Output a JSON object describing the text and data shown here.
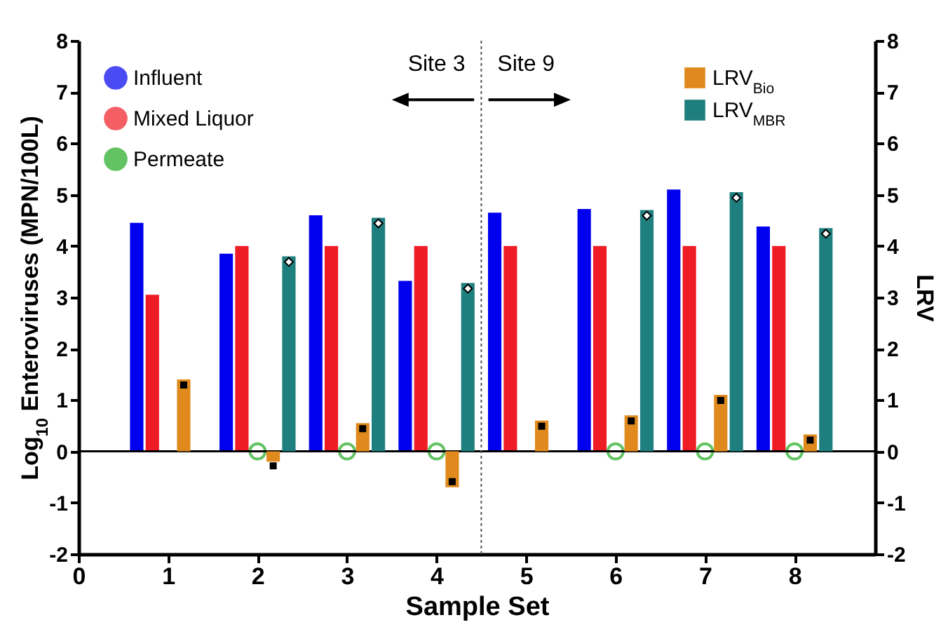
{
  "chart_data": {
    "type": "bar",
    "xlabel": "Sample Set",
    "ylabel": "Log$_{10}$ Enteroviruses  (MPN/100L)",
    "y2label": "LRV",
    "x": [
      1,
      2,
      3,
      4,
      5,
      6,
      7,
      8
    ],
    "xlim": [
      0,
      8.9
    ],
    "xticks": [
      {
        "value": 0,
        "label": "0"
      },
      {
        "value": 1,
        "label": "1"
      },
      {
        "value": 2,
        "label": "2"
      },
      {
        "value": 3,
        "label": "3"
      },
      {
        "value": 4,
        "label": "4"
      },
      {
        "value": 5,
        "label": "5"
      },
      {
        "value": 6,
        "label": "6"
      },
      {
        "value": 7,
        "label": "7"
      },
      {
        "value": 8,
        "label": "8"
      }
    ],
    "ylim": [
      -2,
      8
    ],
    "yticks": [
      -2,
      -1,
      0,
      1,
      2,
      3,
      4,
      5,
      6,
      7,
      8
    ],
    "y2lim": [
      -2,
      8
    ],
    "y2ticks": [
      -2,
      -1,
      0,
      1,
      2,
      3,
      4,
      5,
      6,
      7,
      8
    ],
    "legend": "top left",
    "series": [
      {
        "name": "Influent",
        "color": "#0000ee",
        "values": [
          4.45,
          3.85,
          4.6,
          3.32,
          4.65,
          4.72,
          5.1,
          4.38
        ]
      },
      {
        "name": "Mixed Liquor",
        "color": "#ee1c25",
        "values": [
          3.05,
          4.0,
          4.0,
          4.0,
          4.0,
          4.0,
          4.0,
          4.0
        ]
      },
      {
        "name": "Permeate",
        "type": "scatter",
        "marker": "circle",
        "color": "#22aa22",
        "values": [
          null,
          0,
          0,
          0,
          null,
          0,
          0,
          0
        ]
      },
      {
        "name": "LRV$_{Bio}$",
        "color": "#e08a1e",
        "axis": "y2",
        "marker": "square",
        "values": [
          1.4,
          -0.2,
          0.55,
          -0.7,
          0.6,
          0.7,
          1.1,
          0.33
        ]
      },
      {
        "name": "LRV$_{MBR}$",
        "color": "#1f7f7f",
        "axis": "y2",
        "marker": "diamond",
        "values": [
          null,
          3.8,
          4.55,
          3.28,
          null,
          4.7,
          5.05,
          4.35
        ]
      }
    ],
    "ref_lines": [
      {
        "axis": "y",
        "value": 0,
        "color": "#000000"
      },
      {
        "axis": "x",
        "value": 4.5,
        "line_style": "dotted",
        "color": "#555555"
      }
    ],
    "annotations": [
      "Site 3",
      "Site 9"
    ]
  }
}
